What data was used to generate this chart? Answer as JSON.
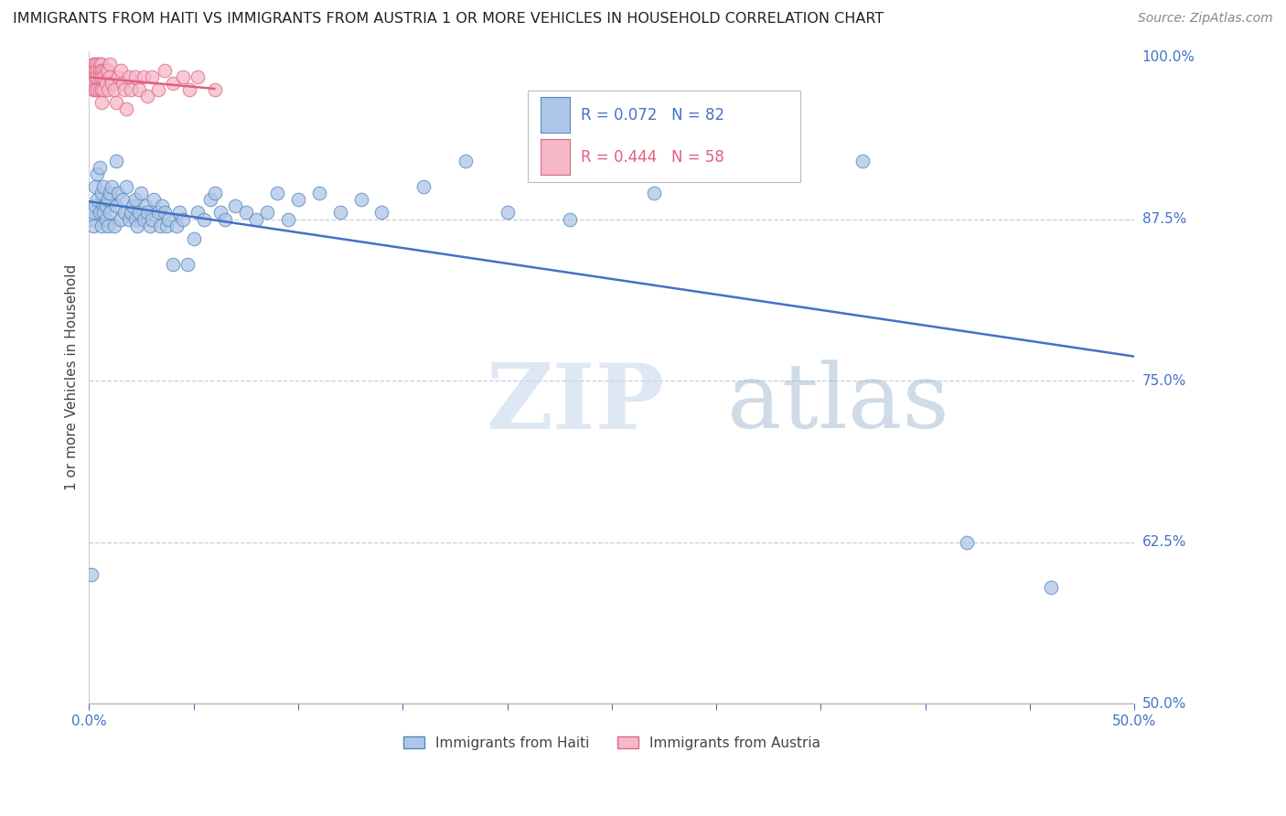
{
  "title": "IMMIGRANTS FROM HAITI VS IMMIGRANTS FROM AUSTRIA 1 OR MORE VEHICLES IN HOUSEHOLD CORRELATION CHART",
  "source": "Source: ZipAtlas.com",
  "ylabel": "1 or more Vehicles in Household",
  "xlim": [
    0.0,
    0.5
  ],
  "ylim": [
    0.5,
    1.005
  ],
  "yticks": [
    0.5,
    0.625,
    0.75,
    0.875,
    1.0
  ],
  "ytick_labels": [
    "50.0%",
    "62.5%",
    "75.0%",
    "87.5%",
    "100.0%"
  ],
  "xticks": [
    0.0,
    0.05,
    0.1,
    0.15,
    0.2,
    0.25,
    0.3,
    0.35,
    0.4,
    0.45,
    0.5
  ],
  "xtick_labels": [
    "0.0%",
    "",
    "",
    "",
    "",
    "",
    "",
    "",
    "",
    "",
    "50.0%"
  ],
  "haiti_color": "#aec6e8",
  "austria_color": "#f5b8c8",
  "haiti_edge_color": "#5588bb",
  "austria_edge_color": "#dd6688",
  "blue_line_color": "#4472c4",
  "pink_line_color": "#e06080",
  "legend_blue_R": "R = 0.072",
  "legend_blue_N": "N = 82",
  "legend_pink_R": "R = 0.444",
  "legend_pink_N": "N = 58",
  "haiti_x": [
    0.001,
    0.001,
    0.002,
    0.002,
    0.003,
    0.003,
    0.004,
    0.004,
    0.005,
    0.005,
    0.006,
    0.006,
    0.007,
    0.007,
    0.007,
    0.008,
    0.008,
    0.009,
    0.009,
    0.01,
    0.01,
    0.011,
    0.012,
    0.013,
    0.013,
    0.014,
    0.015,
    0.016,
    0.017,
    0.018,
    0.019,
    0.02,
    0.021,
    0.022,
    0.022,
    0.023,
    0.024,
    0.025,
    0.026,
    0.027,
    0.028,
    0.029,
    0.03,
    0.031,
    0.033,
    0.034,
    0.035,
    0.036,
    0.037,
    0.038,
    0.04,
    0.042,
    0.043,
    0.045,
    0.047,
    0.05,
    0.052,
    0.055,
    0.058,
    0.06,
    0.063,
    0.065,
    0.07,
    0.075,
    0.08,
    0.085,
    0.09,
    0.095,
    0.1,
    0.11,
    0.12,
    0.13,
    0.14,
    0.16,
    0.18,
    0.2,
    0.23,
    0.27,
    0.31,
    0.37,
    0.42,
    0.46
  ],
  "haiti_y": [
    0.6,
    0.875,
    0.87,
    0.88,
    0.885,
    0.9,
    0.89,
    0.91,
    0.915,
    0.88,
    0.895,
    0.87,
    0.885,
    0.9,
    0.88,
    0.885,
    0.875,
    0.89,
    0.87,
    0.88,
    0.895,
    0.9,
    0.87,
    0.885,
    0.92,
    0.895,
    0.875,
    0.89,
    0.88,
    0.9,
    0.875,
    0.88,
    0.885,
    0.875,
    0.89,
    0.87,
    0.88,
    0.895,
    0.875,
    0.885,
    0.88,
    0.87,
    0.875,
    0.89,
    0.88,
    0.87,
    0.885,
    0.88,
    0.87,
    0.875,
    0.84,
    0.87,
    0.88,
    0.875,
    0.84,
    0.86,
    0.88,
    0.875,
    0.89,
    0.895,
    0.88,
    0.875,
    0.885,
    0.88,
    0.875,
    0.88,
    0.895,
    0.875,
    0.89,
    0.895,
    0.88,
    0.89,
    0.88,
    0.9,
    0.92,
    0.88,
    0.875,
    0.895,
    0.92,
    0.92,
    0.625,
    0.59
  ],
  "austria_x": [
    0.001,
    0.001,
    0.001,
    0.001,
    0.001,
    0.002,
    0.002,
    0.002,
    0.002,
    0.002,
    0.003,
    0.003,
    0.003,
    0.003,
    0.004,
    0.004,
    0.004,
    0.004,
    0.005,
    0.005,
    0.005,
    0.005,
    0.006,
    0.006,
    0.006,
    0.006,
    0.006,
    0.007,
    0.007,
    0.007,
    0.008,
    0.008,
    0.009,
    0.009,
    0.01,
    0.01,
    0.011,
    0.012,
    0.013,
    0.014,
    0.015,
    0.016,
    0.017,
    0.018,
    0.019,
    0.02,
    0.022,
    0.024,
    0.026,
    0.028,
    0.03,
    0.033,
    0.036,
    0.04,
    0.045,
    0.048,
    0.052,
    0.06
  ],
  "austria_y": [
    0.99,
    0.99,
    0.99,
    0.985,
    0.98,
    0.995,
    0.99,
    0.985,
    0.98,
    0.975,
    0.995,
    0.99,
    0.985,
    0.975,
    0.995,
    0.99,
    0.985,
    0.975,
    0.995,
    0.99,
    0.985,
    0.975,
    0.995,
    0.99,
    0.985,
    0.975,
    0.965,
    0.99,
    0.985,
    0.975,
    0.99,
    0.98,
    0.99,
    0.975,
    0.995,
    0.985,
    0.98,
    0.975,
    0.965,
    0.985,
    0.99,
    0.98,
    0.975,
    0.96,
    0.985,
    0.975,
    0.985,
    0.975,
    0.985,
    0.97,
    0.985,
    0.975,
    0.99,
    0.98,
    0.985,
    0.975,
    0.985,
    0.975
  ],
  "watermark_zip": "ZIP",
  "watermark_atlas": "atlas",
  "background_color": "#ffffff",
  "grid_color": "#ccccdd",
  "axis_label_color": "#4472c4",
  "tick_color": "#888888",
  "title_fontsize": 11.5,
  "source_fontsize": 10
}
